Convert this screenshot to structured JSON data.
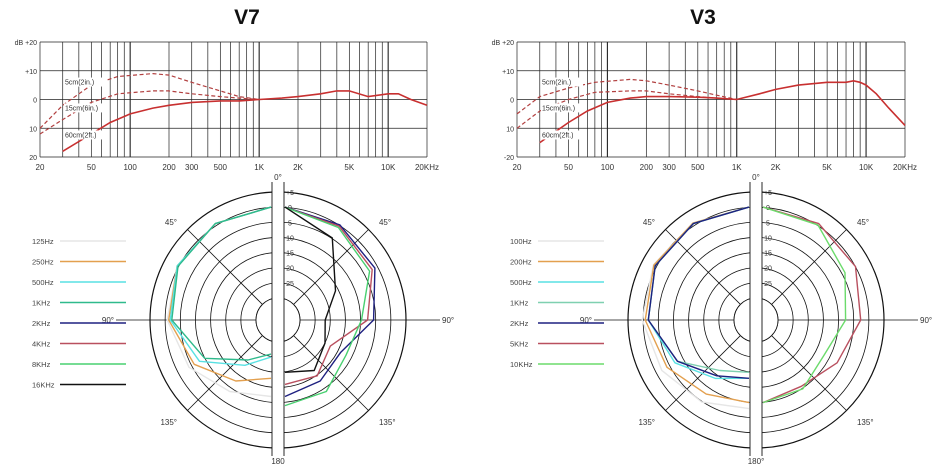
{
  "chart_data": [
    {
      "type": "line",
      "title": "V7",
      "xlabel": "",
      "ylabel": "dB",
      "x_scale": "log",
      "xlim": [
        20,
        20000
      ],
      "ylim": [
        -20,
        20
      ],
      "x_tick_labels": [
        {
          "label": "20",
          "x": 20
        },
        {
          "label": "50",
          "x": 50
        },
        {
          "label": "100",
          "x": 100
        },
        {
          "label": "200",
          "x": 200
        },
        {
          "label": "300",
          "x": 300
        },
        {
          "label": "500",
          "x": 500
        },
        {
          "label": "1K",
          "x": 1000
        },
        {
          "label": "2K",
          "x": 2000
        },
        {
          "label": "5K",
          "x": 5000
        },
        {
          "label": "10K",
          "x": 10000
        },
        {
          "label": "20KHz",
          "x": 20000
        }
      ],
      "y_tick_labels": [
        "dB +20",
        "+10",
        "0",
        "10",
        "20"
      ],
      "curve_labels": [
        "5cm(2in.)",
        "15cm(6in.)",
        "60cm(2ft.)"
      ],
      "series": [
        {
          "name": "5cm(2in.)",
          "style": "dashed",
          "x": [
            20,
            30,
            50,
            80,
            150,
            200,
            300,
            500,
            700,
            1000
          ],
          "y": [
            -10,
            -2,
            5,
            8,
            9,
            8.5,
            6,
            3,
            1,
            0
          ]
        },
        {
          "name": "15cm(6in.)",
          "style": "dashed",
          "x": [
            20,
            30,
            50,
            80,
            150,
            200,
            300,
            500,
            700,
            1000
          ],
          "y": [
            -12,
            -7,
            -1,
            2,
            3,
            3,
            2,
            1,
            0.5,
            0
          ]
        },
        {
          "name": "60cm(2ft.)",
          "style": "solid",
          "x": [
            30,
            50,
            70,
            100,
            150,
            200,
            300,
            500,
            700,
            1000,
            1500,
            2000,
            3000,
            4000,
            5000,
            7000,
            10000,
            12000,
            15000,
            20000
          ],
          "y": [
            -18,
            -12,
            -8,
            -5,
            -3,
            -2,
            -1,
            -0.5,
            -0.5,
            0,
            0.5,
            1,
            2,
            3,
            3,
            1,
            2,
            2,
            0,
            -2
          ]
        }
      ]
    },
    {
      "type": "line",
      "title": "V3",
      "xlabel": "",
      "ylabel": "dB",
      "x_scale": "log",
      "xlim": [
        20,
        20000
      ],
      "ylim": [
        -20,
        20
      ],
      "x_tick_labels": [
        {
          "label": "20",
          "x": 20
        },
        {
          "label": "50",
          "x": 50
        },
        {
          "label": "100",
          "x": 100
        },
        {
          "label": "200",
          "x": 200
        },
        {
          "label": "300",
          "x": 300
        },
        {
          "label": "500",
          "x": 500
        },
        {
          "label": "1K",
          "x": 1000
        },
        {
          "label": "2K",
          "x": 2000
        },
        {
          "label": "5K",
          "x": 5000
        },
        {
          "label": "10K",
          "x": 10000
        },
        {
          "label": "20KHz",
          "x": 20000
        }
      ],
      "y_tick_labels": [
        "dB +20",
        "+10",
        "0",
        "10",
        "-20"
      ],
      "curve_labels": [
        "5cm(2in.)",
        "15cm(6in.)",
        "60cm(2ft.)"
      ],
      "series": [
        {
          "name": "5cm(2in.)",
          "style": "dashed",
          "x": [
            20,
            30,
            50,
            80,
            150,
            200,
            300,
            500,
            700,
            1000
          ],
          "y": [
            -5,
            1,
            4,
            6,
            7,
            6.5,
            5,
            3,
            1.5,
            0
          ]
        },
        {
          "name": "15cm(6in.)",
          "style": "dashed",
          "x": [
            20,
            30,
            50,
            80,
            150,
            200,
            300,
            500,
            700,
            1000
          ],
          "y": [
            -10,
            -4,
            0,
            2.5,
            3,
            3,
            2,
            1,
            0.5,
            0
          ]
        },
        {
          "name": "60cm(2ft.)",
          "style": "solid",
          "x": [
            30,
            50,
            70,
            100,
            150,
            200,
            300,
            500,
            700,
            1000,
            1500,
            2000,
            3000,
            5000,
            7000,
            8000,
            9000,
            10000,
            12000,
            15000,
            20000
          ],
          "y": [
            -15,
            -8,
            -4,
            -1,
            0.5,
            1,
            1,
            0.8,
            0.5,
            0,
            2,
            3.5,
            5,
            6,
            6,
            6.5,
            6,
            5,
            2,
            -3,
            -9
          ]
        }
      ]
    },
    {
      "type": "polar",
      "angle_labels": [
        "0°",
        "45°",
        "90°",
        "135°",
        "180",
        "135°",
        "90°",
        "45°"
      ],
      "radial_labels": [
        "+5",
        "0",
        "5",
        "10",
        "15",
        "20",
        "25"
      ],
      "legend": [
        {
          "label": "125Hz",
          "color": "#e6e6e6"
        },
        {
          "label": "250Hz",
          "color": "#e3a04f"
        },
        {
          "label": "500Hz",
          "color": "#58e1e3"
        },
        {
          "label": "1KHz",
          "color": "#2fba8c"
        },
        {
          "label": "2KHz",
          "color": "#1e2080"
        },
        {
          "label": "4KHz",
          "color": "#b9505f"
        },
        {
          "label": "8KHz",
          "color": "#48d070"
        },
        {
          "label": "16KHz",
          "color": "#111111"
        }
      ],
      "series": [
        {
          "name": "125Hz",
          "side": "left",
          "angles": [
            0,
            30,
            60,
            90,
            120,
            150,
            180
          ],
          "db": [
            0,
            -0.5,
            -1.5,
            -3,
            -6,
            -10,
            -12
          ]
        },
        {
          "name": "250Hz",
          "side": "left",
          "angles": [
            0,
            30,
            60,
            90,
            120,
            150,
            180
          ],
          "db": [
            0,
            -0.5,
            -1.5,
            -3.5,
            -8,
            -14,
            -18
          ]
        },
        {
          "name": "500Hz",
          "side": "left",
          "angles": [
            0,
            30,
            60,
            90,
            120,
            150,
            180
          ],
          "db": [
            0,
            -0.5,
            -1.5,
            -4,
            -10,
            -20,
            -25
          ]
        },
        {
          "name": "1KHz",
          "side": "left",
          "angles": [
            0,
            30,
            60,
            90,
            120,
            150,
            180
          ],
          "db": [
            0,
            -0.5,
            -1.8,
            -4.5,
            -12,
            -22,
            -26
          ]
        },
        {
          "name": "2KHz",
          "side": "right",
          "angles": [
            0,
            30,
            60,
            90,
            120,
            150,
            180
          ],
          "db": [
            0,
            -1,
            -3,
            -8,
            -16,
            -14,
            -12
          ]
        },
        {
          "name": "4KHz",
          "side": "right",
          "angles": [
            0,
            30,
            60,
            90,
            120,
            150,
            180
          ],
          "db": [
            0,
            -1.5,
            -4,
            -10,
            -20,
            -16,
            -16
          ]
        },
        {
          "name": "8KHz",
          "side": "right",
          "angles": [
            0,
            30,
            60,
            90,
            120,
            150,
            180
          ],
          "db": [
            0,
            -2,
            -5,
            -12,
            -14,
            -10,
            -9
          ]
        },
        {
          "name": "16KHz",
          "side": "right",
          "angles": [
            0,
            30,
            60,
            90,
            120,
            150,
            180
          ],
          "db": [
            0,
            -6,
            -18,
            -24,
            -22,
            -18,
            -20
          ]
        }
      ]
    },
    {
      "type": "polar",
      "angle_labels": [
        "0°",
        "45°",
        "90°",
        "135°",
        "180°",
        "135°",
        "90°",
        "45°"
      ],
      "radial_labels": [
        "+5",
        "0",
        "5",
        "10",
        "15",
        "20",
        "25"
      ],
      "legend": [
        {
          "label": "100Hz",
          "color": "#e6e6e6"
        },
        {
          "label": "200Hz",
          "color": "#e3a04f"
        },
        {
          "label": "500Hz",
          "color": "#58e1e3"
        },
        {
          "label": "1KHz",
          "color": "#7fd0b0"
        },
        {
          "label": "2KHz",
          "color": "#1e2080"
        },
        {
          "label": "5KHz",
          "color": "#b9505f"
        },
        {
          "label": "10KHz",
          "color": "#6bdb6b"
        }
      ],
      "series": [
        {
          "name": "100Hz",
          "side": "left",
          "angles": [
            0,
            30,
            60,
            90,
            120,
            150,
            180
          ],
          "db": [
            0,
            -0.3,
            -0.8,
            -2,
            -4,
            -6,
            -8
          ]
        },
        {
          "name": "200Hz",
          "side": "left",
          "angles": [
            0,
            30,
            60,
            90,
            120,
            150,
            180
          ],
          "db": [
            0,
            -0.3,
            -1,
            -3,
            -6,
            -9,
            -10
          ]
        },
        {
          "name": "500Hz",
          "side": "left",
          "angles": [
            0,
            30,
            60,
            90,
            120,
            150,
            180
          ],
          "db": [
            0,
            -0.5,
            -1.5,
            -4,
            -9,
            -15,
            -18
          ]
        },
        {
          "name": "1KHz",
          "side": "left",
          "angles": [
            0,
            30,
            60,
            90,
            120,
            150,
            180
          ],
          "db": [
            0,
            -0.5,
            -1.5,
            -4,
            -10,
            -18,
            -20
          ]
        },
        {
          "name": "2KHz",
          "side": "left",
          "angles": [
            0,
            30,
            60,
            90,
            120,
            150,
            180
          ],
          "db": [
            0,
            -0.5,
            -1.5,
            -4,
            -10,
            -16,
            -18
          ]
        },
        {
          "name": "5KHz",
          "side": "right",
          "angles": [
            0,
            30,
            60,
            90,
            120,
            150,
            180
          ],
          "db": [
            0,
            -0.5,
            -2,
            -5,
            -9,
            -12,
            -10
          ]
        },
        {
          "name": "10KHz",
          "side": "right",
          "angles": [
            0,
            30,
            60,
            90,
            120,
            150,
            180
          ],
          "db": [
            0,
            -1,
            -6,
            -10,
            -14,
            -11,
            -10
          ]
        }
      ]
    }
  ]
}
